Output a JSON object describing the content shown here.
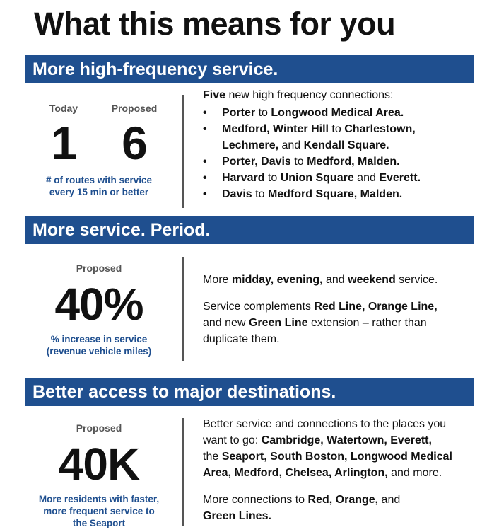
{
  "title": "What this means for you",
  "section1": {
    "header": "More high-frequency service.",
    "today_label": "Today",
    "today_value": "1",
    "proposed_label": "Proposed",
    "proposed_value": "6",
    "caption_line1": "# of routes with service",
    "caption_line2": "every 15 min or better",
    "intro_bold": "Five",
    "intro_rest": " new high frequency connections:",
    "bullets": [
      [
        "Porter",
        " to ",
        "Longwood Medical Area."
      ],
      [
        "Medford, Winter Hill",
        " to ",
        "Charlestown,"
      ],
      [
        "Porter, Davis",
        " to ",
        "Medford, Malden."
      ],
      [
        "Harvard",
        " to ",
        "Union Square"
      ],
      [
        "Davis",
        " to ",
        "Medford Square, Malden."
      ]
    ],
    "bullet2_line2_a": "Lechmere,",
    "bullet2_line2_b": " and ",
    "bullet2_line2_c": "Kendall Square.",
    "bullet4_tail_a": " and ",
    "bullet4_tail_b": "Everett."
  },
  "section2": {
    "header": "More service. Period.",
    "proposed_label": "Proposed",
    "value": "40%",
    "caption_line1": "% increase in service",
    "caption_line2": "(revenue vehicle miles)",
    "p1": {
      "a": "More ",
      "b": "midday, evening,",
      "c": " and ",
      "d": "weekend",
      "e": " service."
    },
    "p2": {
      "a": "Service complements ",
      "b": "Red Line, Orange Line,",
      "c": "and new ",
      "d": "Green Line",
      "e": " extension – rather than",
      "f": "duplicate them."
    }
  },
  "section3": {
    "header": "Better access to major destinations.",
    "proposed_label": "Proposed",
    "value": "40K",
    "caption_line1": "More residents with faster,",
    "caption_line2": "more frequent service to",
    "caption_line3": "the Seaport",
    "p1": {
      "a": "Better service and connections to the places you",
      "b": "want to go:  ",
      "c": "Cambridge, Watertown, Everett,",
      "d": "the ",
      "e": "Seaport, South Boston, Longwood Medical",
      "f": "Area, Medford, Chelsea, Arlington,",
      "g": " and more."
    },
    "p2": {
      "a": "More connections to ",
      "b": "Red, Orange,",
      "c": " and",
      "d": "Green Lines."
    }
  },
  "colors": {
    "band": "#1f4f8f",
    "caption": "#1f4f8f"
  }
}
